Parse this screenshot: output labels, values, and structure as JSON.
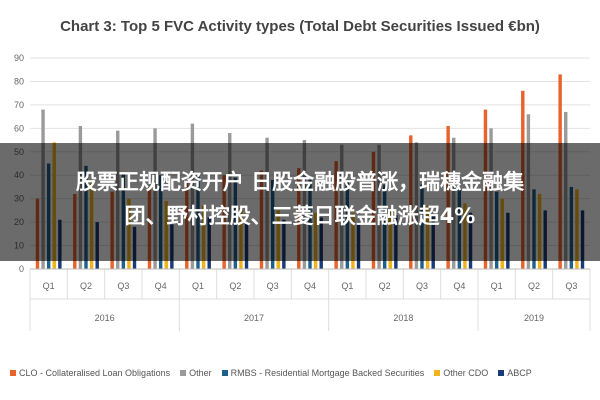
{
  "chart_data": {
    "type": "bar",
    "title": "Chart 3: Top 5 FVC Activity types (Total Debt Securities Issued €bn)",
    "ylim": [
      0,
      90
    ],
    "yticks": [
      0,
      10,
      20,
      30,
      40,
      50,
      60,
      70,
      80,
      90
    ],
    "categories": [
      "Q1",
      "Q2",
      "Q3",
      "Q4",
      "Q1",
      "Q2",
      "Q3",
      "Q4",
      "Q1",
      "Q2",
      "Q3",
      "Q4",
      "Q1",
      "Q2",
      "Q3"
    ],
    "years": [
      "2016",
      "2017",
      "2018",
      "2019"
    ],
    "series": [
      {
        "name": "CLO - Collateralised Loan Obligations",
        "color": "#e8622a",
        "values": [
          30,
          32,
          33,
          35,
          38,
          40,
          42,
          43,
          46,
          50,
          57,
          61,
          68,
          76,
          83
        ]
      },
      {
        "name": "Other",
        "color": "#9a9a9a",
        "values": [
          68,
          61,
          59,
          60,
          62,
          58,
          56,
          55,
          53,
          53,
          54,
          56,
          60,
          66,
          67
        ]
      },
      {
        "name": "RMBS - Residential Mortgage Backed Securities",
        "color": "#1f5f8b",
        "values": [
          45,
          44,
          41,
          40,
          40,
          39,
          38,
          38,
          38,
          36,
          36,
          34,
          33,
          34,
          35
        ]
      },
      {
        "name": "Other CDO",
        "color": "#f2b21a",
        "values": [
          54,
          38,
          30,
          29,
          27,
          26,
          25,
          24,
          24,
          25,
          27,
          28,
          30,
          32,
          34
        ]
      },
      {
        "name": "ABCP",
        "color": "#1a3a78",
        "values": [
          21,
          20,
          18,
          19,
          22,
          20,
          21,
          22,
          20,
          23,
          23,
          24,
          24,
          25,
          25
        ]
      }
    ]
  },
  "overlay": {
    "line1": "股票正规配资开户 日股金融股普涨，瑞穗金融集",
    "line2": "团、野村控股、三菱日联金融涨超4%"
  }
}
